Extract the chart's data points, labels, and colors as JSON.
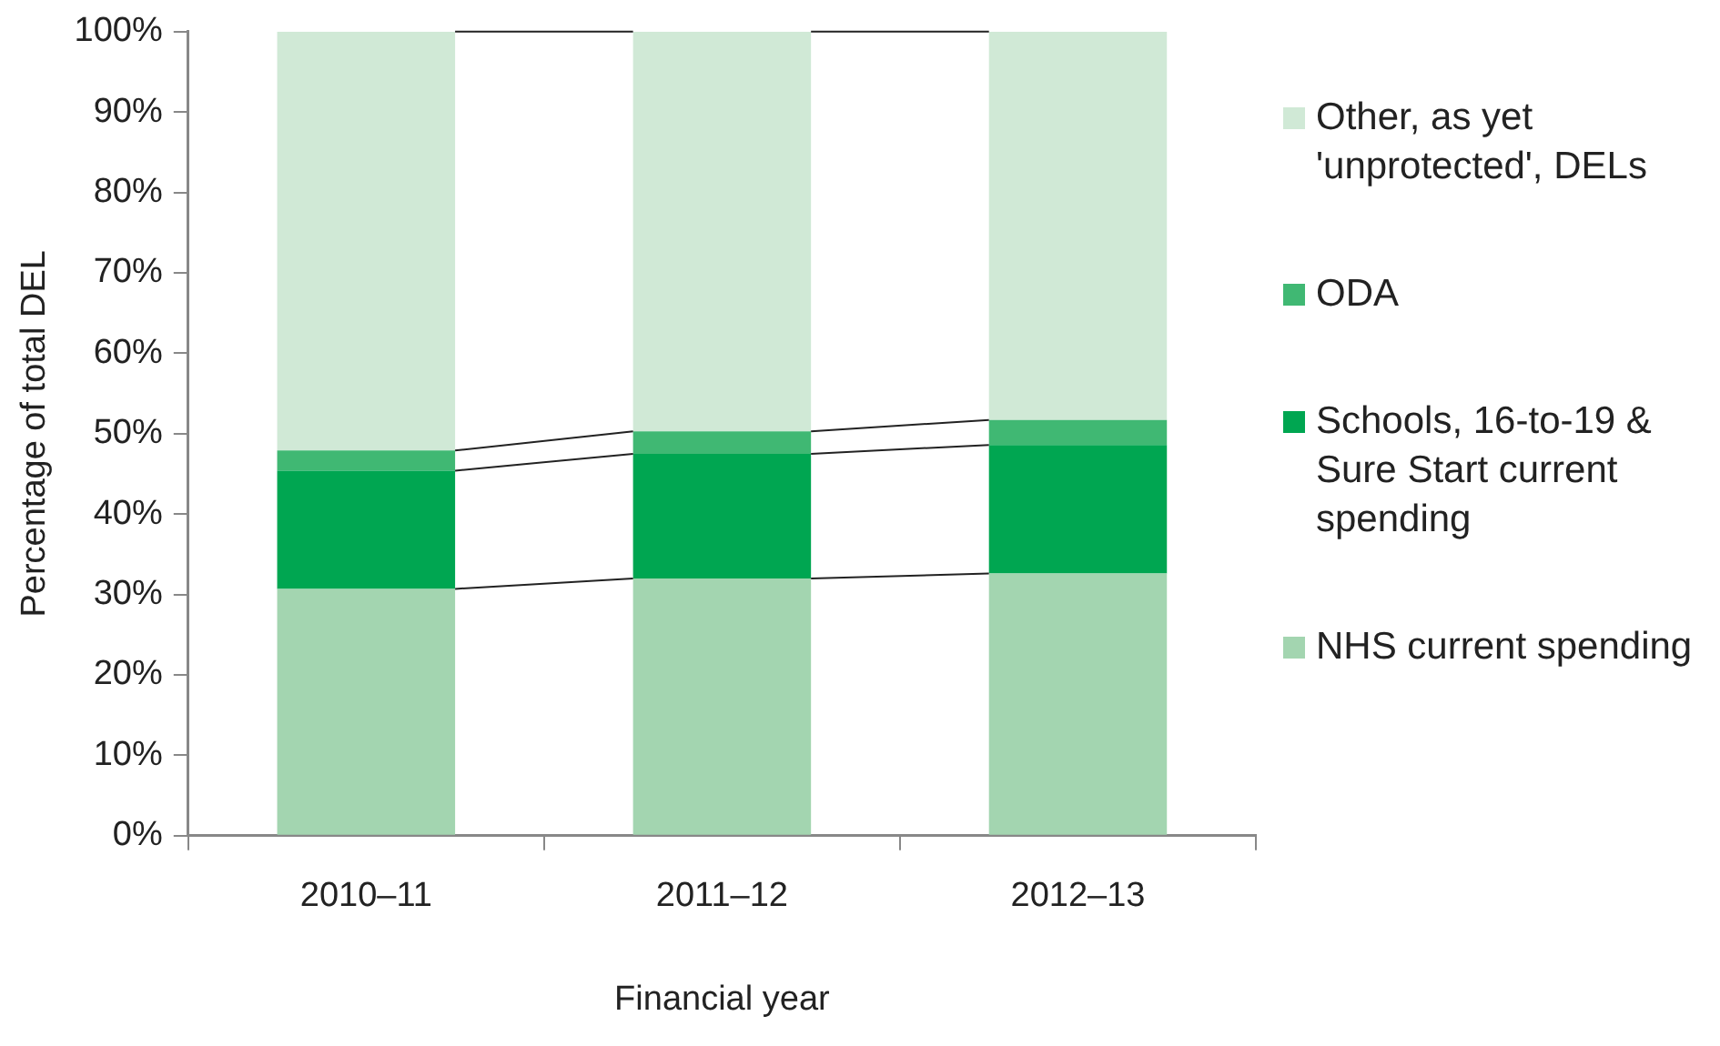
{
  "chart_data": {
    "type": "bar",
    "stacked": true,
    "xlabel": "Financial year",
    "ylabel": "Percentage of total DEL",
    "categories": [
      "2010–11",
      "2011–12",
      "2012–13"
    ],
    "series": [
      {
        "name": "NHS current spending",
        "color": "#a3d5b0",
        "values": [
          30.7,
          32.0,
          32.6
        ]
      },
      {
        "name": "Schools, 16-to-19 & Sure Start current spending",
        "color": "#00a651",
        "values": [
          14.7,
          15.5,
          16.0
        ]
      },
      {
        "name": "ODA",
        "color": "#40b873",
        "values": [
          2.5,
          2.8,
          3.1
        ]
      },
      {
        "name": "Other, as yet 'unprotected', DELs",
        "color": "#d0e9d6",
        "values": [
          52.1,
          49.7,
          48.3
        ]
      }
    ],
    "ylim": [
      0,
      100
    ],
    "yticks": [
      {
        "value": 0,
        "label": "0%"
      },
      {
        "value": 10,
        "label": "10%"
      },
      {
        "value": 20,
        "label": "20%"
      },
      {
        "value": 30,
        "label": "30%"
      },
      {
        "value": 40,
        "label": "40%"
      },
      {
        "value": 50,
        "label": "50%"
      },
      {
        "value": 60,
        "label": "60%"
      },
      {
        "value": 70,
        "label": "70%"
      },
      {
        "value": 80,
        "label": "80%"
      },
      {
        "value": 90,
        "label": "90%"
      },
      {
        "value": 100,
        "label": "100%"
      }
    ],
    "grid": false,
    "legend": "right"
  }
}
